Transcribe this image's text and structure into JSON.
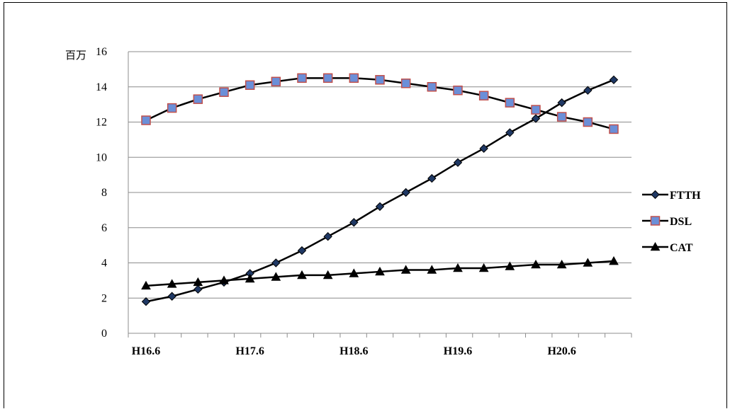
{
  "chart_data": {
    "type": "line",
    "ylabel": "百万",
    "ylim": [
      0,
      16
    ],
    "yticks": [
      "0",
      "2",
      "4",
      "6",
      "8",
      "10",
      "12",
      "14",
      "16"
    ],
    "xtick_labels": [
      "H16.6",
      "H17.6",
      "H18.6",
      "H19.6",
      "H20.6"
    ],
    "x": [
      "H16.6",
      "H16.9",
      "H16.12",
      "H17.3",
      "H17.6",
      "H17.9",
      "H17.12",
      "H18.3",
      "H18.6",
      "H18.9",
      "H18.12",
      "H19.3",
      "H19.6",
      "H19.9",
      "H19.12",
      "H20.3",
      "H20.6",
      "H20.9",
      "H20.12"
    ],
    "grid": true,
    "legend_position": "right",
    "series": [
      {
        "name": "FTTH",
        "marker": "diamond",
        "color": "#000000",
        "marker_color": "#1f3864",
        "values": [
          1.8,
          2.1,
          2.5,
          2.9,
          3.4,
          4.0,
          4.7,
          5.5,
          6.3,
          7.2,
          8.0,
          8.8,
          9.7,
          10.5,
          11.4,
          12.2,
          13.1,
          13.8,
          14.4
        ]
      },
      {
        "name": "DSL",
        "marker": "square",
        "color": "#000000",
        "marker_color": "#6b8fd8",
        "values": [
          12.1,
          12.8,
          13.3,
          13.7,
          14.1,
          14.3,
          14.5,
          14.5,
          14.5,
          14.4,
          14.2,
          14.0,
          13.8,
          13.5,
          13.1,
          12.7,
          12.3,
          12.0,
          11.6
        ]
      },
      {
        "name": "CAT",
        "marker": "triangle",
        "color": "#000000",
        "marker_color": "#000000",
        "values": [
          2.7,
          2.8,
          2.9,
          3.0,
          3.1,
          3.2,
          3.3,
          3.3,
          3.4,
          3.5,
          3.6,
          3.6,
          3.7,
          3.7,
          3.8,
          3.9,
          3.9,
          4.0,
          4.1
        ]
      }
    ]
  }
}
